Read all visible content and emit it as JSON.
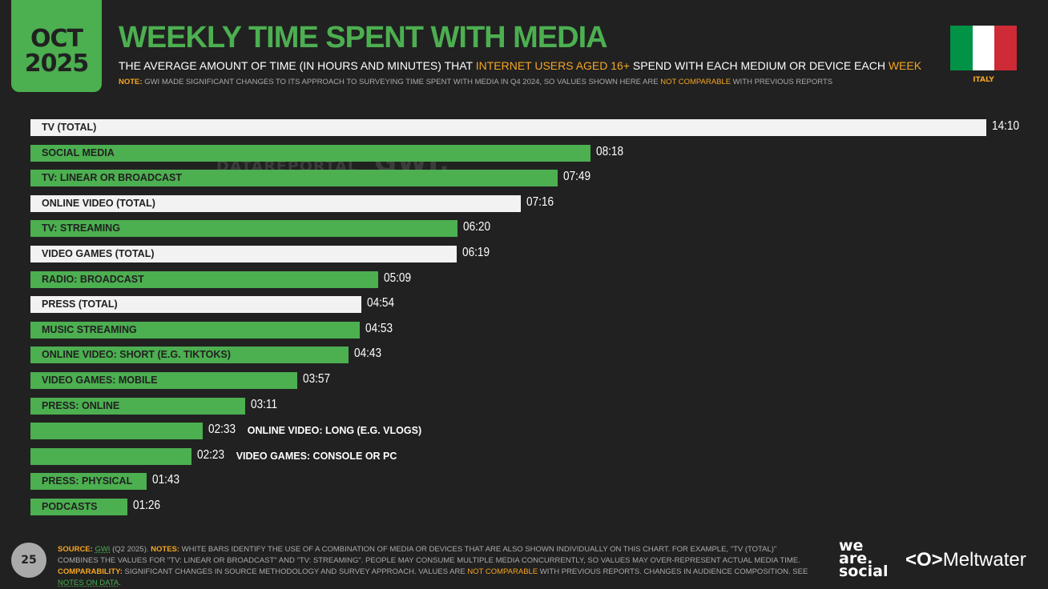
{
  "header": {
    "month": "OCT",
    "year": "2025",
    "title": "WEEKLY TIME SPENT WITH MEDIA",
    "subtitle_a": "THE AVERAGE AMOUNT OF TIME (IN HOURS AND MINUTES) THAT ",
    "subtitle_hl1": "INTERNET USERS AGED 16+",
    "subtitle_b": " SPEND WITH EACH MEDIUM OR DEVICE EACH ",
    "subtitle_hl2": "WEEK",
    "note_label": "NOTE:",
    "note_a": " GWI MADE SIGNIFICANT CHANGES TO ITS APPROACH TO SURVEYING TIME SPENT WITH MEDIA IN Q4 2024, SO VALUES SHOWN HERE ARE ",
    "note_hl": "NOT COMPARABLE",
    "note_b": " WITH PREVIOUS REPORTS",
    "country": "ITALY",
    "flag_colors": [
      "#009246",
      "#ffffff",
      "#ce2b37"
    ]
  },
  "watermark": {
    "a": "DATAREPORTAL",
    "b": "GWI."
  },
  "colors": {
    "green": "#4caf50",
    "white": "#f2f2f2",
    "accent": "#f5a623",
    "background": "#212121"
  },
  "chart_data": {
    "type": "bar",
    "orientation": "horizontal",
    "unit": "hh:mm",
    "xlim_minutes": [
      0,
      850
    ],
    "categories": [
      "TV (TOTAL)",
      "SOCIAL MEDIA",
      "TV: LINEAR OR BROADCAST",
      "ONLINE VIDEO (TOTAL)",
      "TV: STREAMING",
      "VIDEO GAMES (TOTAL)",
      "RADIO: BROADCAST",
      "PRESS (TOTAL)",
      "MUSIC STREAMING",
      "ONLINE VIDEO: SHORT (E.G. TIKTOKS)",
      "VIDEO GAMES: MOBILE",
      "PRESS: ONLINE",
      "ONLINE VIDEO: LONG (E.G. VLOGS)",
      "VIDEO GAMES: CONSOLE OR PC",
      "PRESS: PHYSICAL",
      "PODCASTS"
    ],
    "values": [
      "14:10",
      "08:18",
      "07:49",
      "07:16",
      "06:20",
      "06:19",
      "05:09",
      "04:54",
      "04:53",
      "04:43",
      "03:57",
      "03:11",
      "02:33",
      "02:23",
      "01:43",
      "01:26"
    ],
    "combined": [
      true,
      false,
      false,
      true,
      false,
      true,
      false,
      true,
      false,
      false,
      false,
      false,
      false,
      false,
      false,
      false
    ]
  },
  "footer": {
    "page": "25",
    "source_label": "SOURCE:",
    "source": "GWI",
    "source_rest": " (Q2 2025). ",
    "notes_label": "NOTES:",
    "notes": " WHITE BARS IDENTIFY THE USE OF A COMBINATION OF MEDIA OR DEVICES THAT ARE ALSO SHOWN INDIVIDUALLY ON THIS CHART. FOR EXAMPLE, \"TV (TOTAL)\" COMBINES THE VALUES FOR \"TV: LINEAR OR BROADCAST\" AND \"TV: STREAMING\". PEOPLE MAY CONSUME MULTIPLE MEDIA CONCURRENTLY, SO VALUES MAY OVER-REPRESENT ACTUAL MEDIA TIME. ",
    "comp_label": "COMPARABILITY:",
    "comp": " SIGNIFICANT CHANGES IN SOURCE METHODOLOGY AND SURVEY APPROACH. VALUES ARE ",
    "comp_hl": "NOT COMPARABLE",
    "comp_b": " WITH PREVIOUS REPORTS. CHANGES IN AUDIENCE COMPOSITION. SEE ",
    "link": "NOTES ON DATA",
    "end": "."
  },
  "logos": {
    "wearesocial": "we are. social",
    "meltwater": "Meltwater"
  }
}
